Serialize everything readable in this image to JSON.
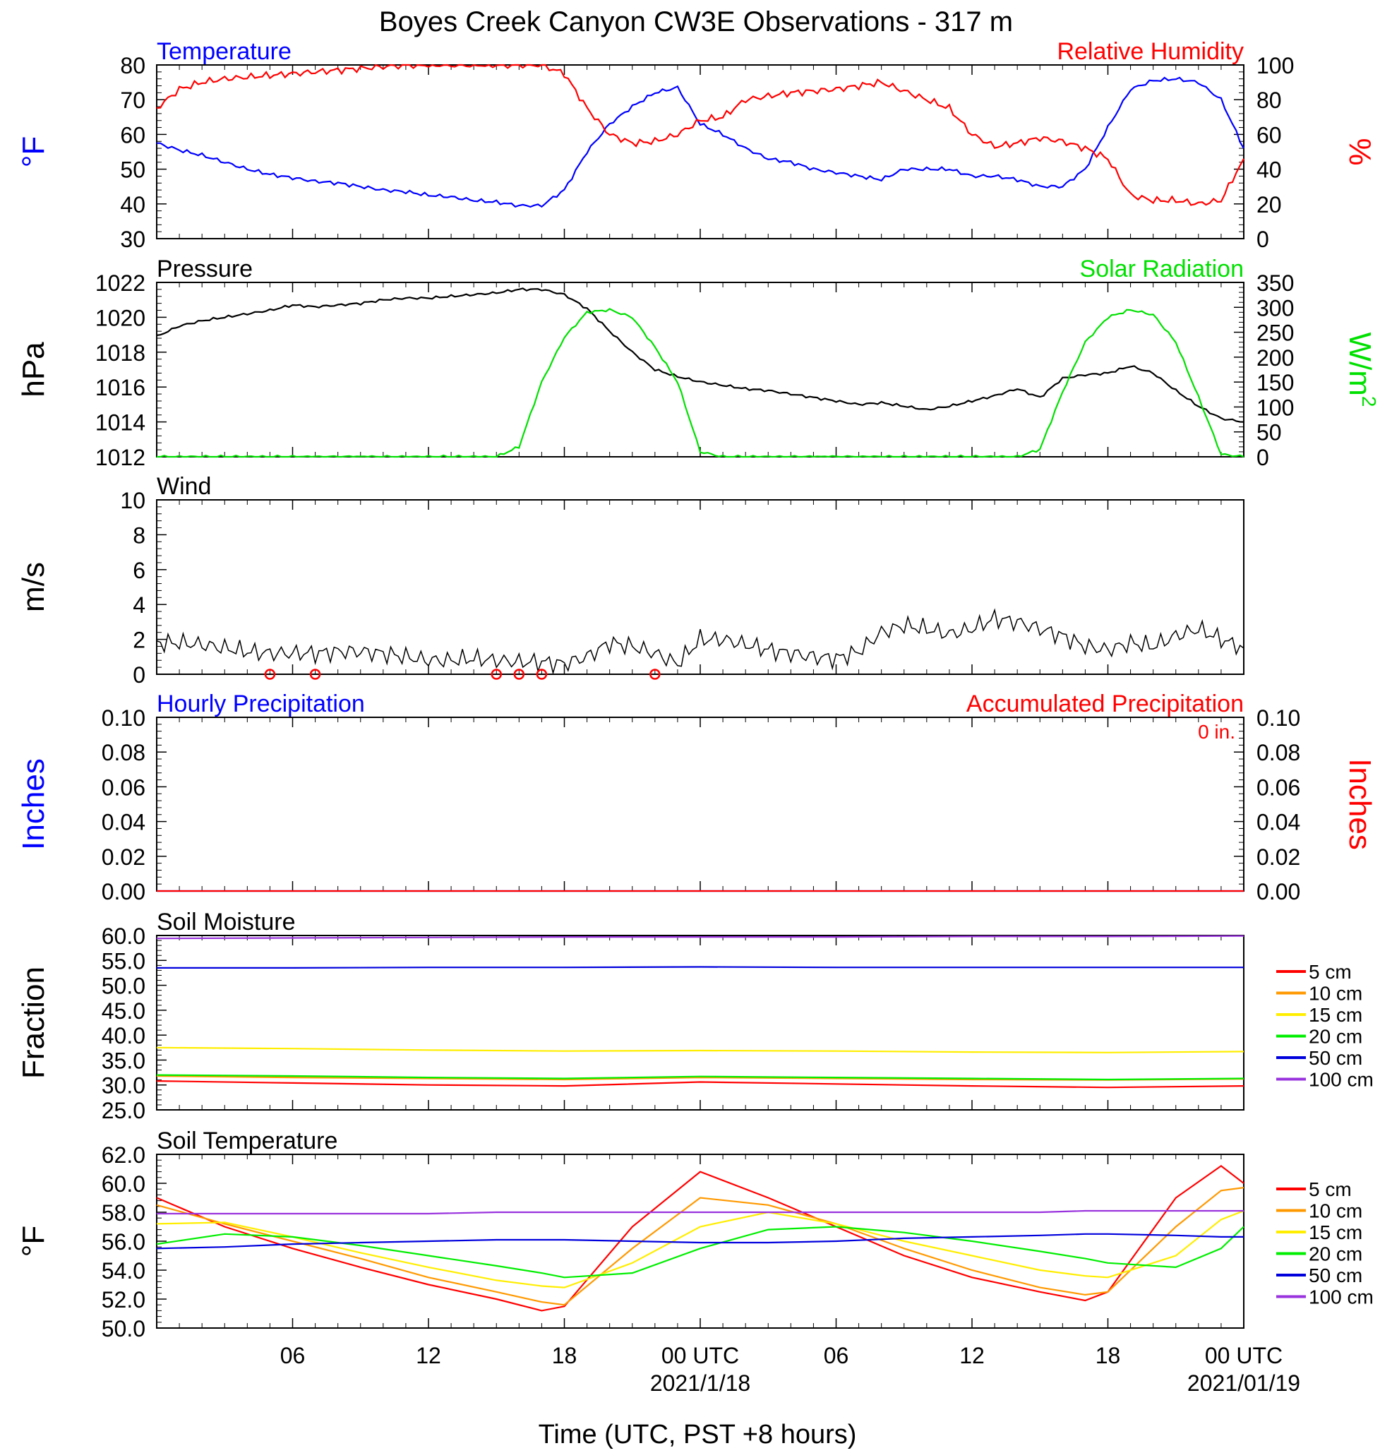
{
  "title": "Boyes Creek Canyon CW3E Observations - 317 m",
  "x_axis": {
    "title": "Time (UTC, PST +8 hours)",
    "tick_labels": [
      "06",
      "12",
      "18",
      "00 UTC",
      "06",
      "12",
      "18",
      "00 UTC"
    ],
    "date_labels": [
      "2021/1/18",
      "2021/01/19"
    ]
  },
  "colors": {
    "blue": "#0000ff",
    "red": "#ff0000",
    "green": "#00e000",
    "black": "#000000",
    "soil_5cm": "#ff0000",
    "soil_10cm": "#ff9900",
    "soil_15cm": "#ffee00",
    "soil_20cm": "#00ee00",
    "soil_50cm": "#0000dd",
    "soil_100cm": "#9933dd"
  },
  "chart_data": [
    {
      "type": "line",
      "panel": "Temperature / Relative Humidity",
      "title_left": "Temperature",
      "title_right": "Relative Humidity",
      "ylabel_left": "°F",
      "ylabel_right": "%",
      "ylim_left": [
        30,
        80
      ],
      "ylim_right": [
        0,
        100
      ],
      "yticks_left": [
        "80",
        "70",
        "60",
        "50",
        "40",
        "30"
      ],
      "yticks_right": [
        "100",
        "80",
        "60",
        "40",
        "20",
        "0"
      ],
      "x_hours": [
        0,
        1,
        2,
        3,
        4,
        5,
        6,
        7,
        8,
        9,
        10,
        11,
        12,
        13,
        14,
        15,
        16,
        17,
        18,
        19,
        20,
        21,
        22,
        23,
        24,
        25,
        26,
        27,
        28,
        29,
        30,
        31,
        32,
        33,
        34,
        35,
        36,
        37,
        38,
        39,
        40,
        41,
        42,
        43,
        44,
        45,
        46,
        47,
        48
      ],
      "series": [
        {
          "name": "Temperature",
          "color": "blue",
          "axis": "left",
          "values": [
            57.5,
            55.5,
            54,
            52,
            50,
            48.5,
            47.5,
            46.5,
            46,
            45,
            44,
            43.5,
            42.5,
            42,
            41,
            40.5,
            39.5,
            39.5,
            44,
            55,
            63,
            68,
            72,
            73.5,
            63,
            60,
            56,
            53,
            52,
            50,
            49,
            48,
            47,
            50,
            50,
            50,
            48,
            48,
            47,
            45,
            45,
            50,
            62,
            73,
            75.5,
            76,
            75,
            70,
            56
          ]
        },
        {
          "name": "Relative Humidity",
          "color": "red",
          "axis": "right",
          "values": [
            75,
            86,
            90,
            92,
            93,
            94,
            95,
            96,
            97,
            98,
            99,
            100,
            100,
            100,
            100,
            100,
            100,
            100,
            95,
            75,
            60,
            55,
            56,
            60,
            68,
            70,
            80,
            82,
            84,
            85,
            86,
            88,
            90,
            85,
            80,
            75,
            60,
            53,
            55,
            58,
            56,
            52,
            46,
            25,
            22,
            22,
            20,
            22,
            46
          ]
        }
      ]
    },
    {
      "type": "line",
      "panel": "Pressure / Solar Radiation",
      "title_left": "Pressure",
      "title_right": "Solar Radiation",
      "ylabel_left": "hPa",
      "ylabel_right": "W/m",
      "ylabel_right_sup": "2",
      "ylim_left": [
        1012,
        1022
      ],
      "ylim_right": [
        0,
        350
      ],
      "yticks_left": [
        "1022",
        "1020",
        "1018",
        "1016",
        "1014",
        "1012"
      ],
      "yticks_right": [
        "350",
        "300",
        "250",
        "200",
        "150",
        "100",
        "50",
        "0"
      ],
      "x_hours": [
        0,
        1,
        2,
        3,
        4,
        5,
        6,
        7,
        8,
        9,
        10,
        11,
        12,
        13,
        14,
        15,
        16,
        17,
        18,
        19,
        20,
        21,
        22,
        23,
        24,
        25,
        26,
        27,
        28,
        29,
        30,
        31,
        32,
        33,
        34,
        35,
        36,
        37,
        38,
        39,
        40,
        41,
        42,
        43,
        44,
        45,
        46,
        47,
        48
      ],
      "series": [
        {
          "name": "Pressure",
          "color": "black",
          "axis": "left",
          "values": [
            1018.9,
            1019.5,
            1019.8,
            1020.0,
            1020.2,
            1020.4,
            1020.7,
            1020.6,
            1020.7,
            1020.8,
            1021.0,
            1021.1,
            1021.1,
            1021.2,
            1021.3,
            1021.4,
            1021.6,
            1021.6,
            1021.3,
            1020.5,
            1019.2,
            1018.0,
            1017.0,
            1016.6,
            1016.3,
            1016.1,
            1015.9,
            1015.8,
            1015.6,
            1015.4,
            1015.2,
            1015.0,
            1015.1,
            1014.9,
            1014.7,
            1014.9,
            1015.2,
            1015.5,
            1015.9,
            1015.4,
            1016.5,
            1016.7,
            1016.8,
            1017.2,
            1016.8,
            1015.8,
            1014.9,
            1014.2,
            1014.0
          ]
        },
        {
          "name": "Solar Radiation",
          "color": "green",
          "axis": "right",
          "values": [
            0,
            0,
            0,
            0,
            0,
            0,
            0,
            0,
            0,
            0,
            0,
            0,
            0,
            0,
            0,
            0,
            20,
            150,
            240,
            290,
            295,
            280,
            220,
            150,
            10,
            0,
            0,
            0,
            0,
            0,
            0,
            0,
            0,
            0,
            0,
            0,
            0,
            0,
            0,
            15,
            130,
            230,
            280,
            295,
            285,
            230,
            120,
            5,
            0
          ]
        }
      ]
    },
    {
      "type": "line",
      "panel": "Wind",
      "title_left": "Wind",
      "ylabel_left": "m/s",
      "ylim_left": [
        0,
        10
      ],
      "yticks_left": [
        "10",
        "8",
        "6",
        "4",
        "2",
        "0"
      ],
      "x_hours": [
        0,
        1,
        2,
        3,
        4,
        5,
        6,
        7,
        8,
        9,
        10,
        11,
        12,
        13,
        14,
        15,
        16,
        17,
        18,
        19,
        20,
        21,
        22,
        23,
        24,
        25,
        26,
        27,
        28,
        29,
        30,
        31,
        32,
        33,
        34,
        35,
        36,
        37,
        38,
        39,
        40,
        41,
        42,
        43,
        44,
        45,
        46,
        47,
        48
      ],
      "series": [
        {
          "name": "Wind speed",
          "color": "black",
          "axis": "left",
          "values": [
            1.8,
            1.8,
            1.7,
            1.5,
            1.3,
            1.2,
            1.2,
            1.2,
            1.3,
            1.3,
            1.2,
            1.0,
            0.8,
            0.8,
            0.9,
            0.8,
            0.7,
            0.7,
            0.6,
            1.0,
            1.8,
            1.6,
            1.2,
            0.6,
            2.0,
            2.0,
            1.7,
            1.4,
            1.2,
            1.0,
            0.9,
            1.3,
            2.4,
            2.8,
            2.6,
            2.3,
            2.6,
            3.2,
            3.0,
            2.6,
            2.2,
            1.6,
            1.4,
            1.8,
            1.6,
            2.2,
            2.6,
            2.0,
            1.5
          ]
        }
      ],
      "calm_markers_hours": [
        5,
        7,
        15,
        16,
        17,
        22
      ]
    },
    {
      "type": "line",
      "panel": "Precipitation",
      "title_left": "Hourly Precipitation",
      "title_right": "Accumulated Precipitation",
      "annotation": "0 in.",
      "ylabel_left": "Inches",
      "ylabel_right": "Inches",
      "ylim_left": [
        0,
        0.1
      ],
      "ylim_right": [
        0,
        0.1
      ],
      "yticks_left": [
        "0.10",
        "0.08",
        "0.06",
        "0.04",
        "0.02",
        "0.00"
      ],
      "yticks_right": [
        "0.10",
        "0.08",
        "0.06",
        "0.04",
        "0.02",
        "0.00"
      ],
      "series": [
        {
          "name": "Hourly Precipitation",
          "color": "blue",
          "axis": "left",
          "x_hours": [
            0,
            48
          ],
          "values": [
            0,
            0
          ]
        },
        {
          "name": "Accumulated Precipitation",
          "color": "red",
          "axis": "right",
          "x_hours": [
            0,
            48
          ],
          "values": [
            0,
            0
          ]
        }
      ]
    },
    {
      "type": "line",
      "panel": "Soil Moisture",
      "title_left": "Soil Moisture",
      "ylabel_left": "Fraction",
      "ylim_left": [
        25,
        60
      ],
      "yticks_left": [
        "60.0",
        "55.0",
        "50.0",
        "45.0",
        "40.0",
        "35.0",
        "30.0",
        "25.0"
      ],
      "x_hours": [
        0,
        6,
        12,
        18,
        24,
        30,
        36,
        42,
        48
      ],
      "series": [
        {
          "name": "5 cm",
          "color": "soil_5cm",
          "values": [
            30.8,
            30.4,
            30.0,
            29.8,
            30.6,
            30.2,
            29.8,
            29.5,
            29.8
          ]
        },
        {
          "name": "10 cm",
          "color": "soil_10cm",
          "values": [
            31.8,
            31.5,
            31.3,
            31.1,
            31.5,
            31.3,
            31.1,
            31.0,
            31.2
          ]
        },
        {
          "name": "15 cm",
          "color": "soil_15cm",
          "values": [
            37.5,
            37.3,
            37.0,
            36.8,
            36.9,
            36.8,
            36.6,
            36.5,
            36.7
          ]
        },
        {
          "name": "20 cm",
          "color": "soil_20cm",
          "values": [
            32.0,
            31.8,
            31.5,
            31.3,
            31.7,
            31.5,
            31.3,
            31.1,
            31.3
          ]
        },
        {
          "name": "50 cm",
          "color": "soil_50cm",
          "values": [
            53.5,
            53.5,
            53.6,
            53.6,
            53.7,
            53.6,
            53.6,
            53.6,
            53.6
          ]
        },
        {
          "name": "100 cm",
          "color": "soil_100cm",
          "values": [
            59.4,
            59.5,
            59.6,
            59.7,
            59.7,
            59.7,
            59.8,
            59.8,
            59.9
          ]
        }
      ]
    },
    {
      "type": "line",
      "panel": "Soil Temperature",
      "title_left": "Soil Temperature",
      "ylabel_left": "°F",
      "ylim_left": [
        50,
        62
      ],
      "yticks_left": [
        "62.0",
        "60.0",
        "58.0",
        "56.0",
        "54.0",
        "52.0",
        "50.0"
      ],
      "x_hours": [
        0,
        3,
        6,
        9,
        12,
        15,
        17,
        18,
        21,
        24,
        27,
        30,
        33,
        36,
        39,
        41,
        42,
        45,
        47,
        48
      ],
      "series": [
        {
          "name": "5 cm",
          "color": "soil_5cm",
          "values": [
            59.0,
            57.0,
            55.5,
            54.2,
            53.0,
            52.0,
            51.2,
            51.5,
            57.0,
            60.8,
            59.0,
            57.0,
            55.0,
            53.5,
            52.5,
            51.9,
            52.5,
            59.0,
            61.2,
            60.0
          ]
        },
        {
          "name": "10 cm",
          "color": "soil_10cm",
          "values": [
            58.5,
            57.2,
            56.0,
            54.8,
            53.5,
            52.5,
            51.8,
            51.6,
            55.5,
            59.0,
            58.5,
            57.2,
            55.5,
            54.0,
            52.8,
            52.3,
            52.5,
            57.0,
            59.5,
            59.7
          ]
        },
        {
          "name": "15 cm",
          "color": "soil_15cm",
          "values": [
            57.2,
            57.3,
            56.3,
            55.2,
            54.2,
            53.3,
            52.9,
            52.8,
            54.5,
            57.0,
            58.0,
            57.2,
            56.0,
            55.0,
            54.0,
            53.6,
            53.5,
            55.0,
            57.5,
            58.1
          ]
        },
        {
          "name": "20 cm",
          "color": "soil_20cm",
          "values": [
            55.8,
            56.5,
            56.3,
            55.7,
            55.0,
            54.3,
            53.8,
            53.5,
            53.8,
            55.5,
            56.8,
            57.0,
            56.6,
            56.0,
            55.3,
            54.8,
            54.5,
            54.2,
            55.5,
            57.0
          ]
        },
        {
          "name": "50 cm",
          "color": "soil_50cm",
          "values": [
            55.5,
            55.6,
            55.8,
            55.9,
            56.0,
            56.1,
            56.1,
            56.1,
            56.0,
            55.9,
            55.9,
            56.0,
            56.2,
            56.3,
            56.4,
            56.5,
            56.5,
            56.4,
            56.3,
            56.3
          ]
        },
        {
          "name": "100 cm",
          "color": "soil_100cm",
          "values": [
            57.9,
            57.9,
            57.9,
            57.9,
            57.9,
            58.0,
            58.0,
            58.0,
            58.0,
            58.0,
            58.0,
            58.0,
            58.0,
            58.0,
            58.0,
            58.1,
            58.1,
            58.1,
            58.1,
            58.1
          ]
        }
      ]
    }
  ]
}
